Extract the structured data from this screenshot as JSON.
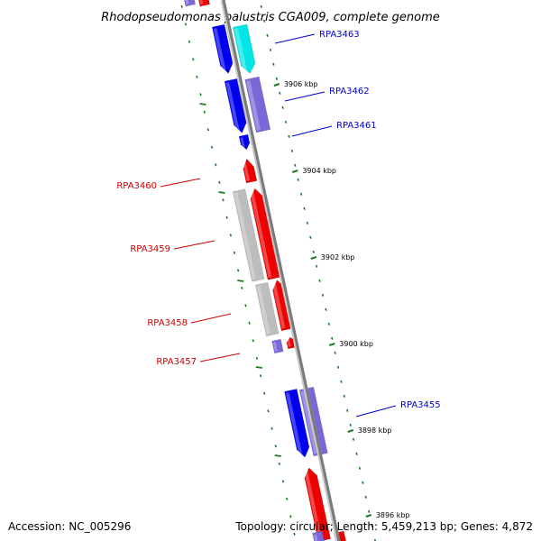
{
  "title": "Rhodopseudomonas palustris CGA009, complete genome",
  "footer": {
    "accession": "Accession: NC_005296",
    "summary": "Topology: circular; Length: 5,459,213 bp; Genes: 4,872"
  },
  "colors": {
    "backbone": "#7a7a7a",
    "tick": "#1a7a1a",
    "forward_strand": "#ee0000",
    "reverse_strand": "#0000ee",
    "reverse_light": "#7b68d8",
    "cyan": "#00e5e5",
    "pseudo": "#bdbdbd",
    "label_blue": "#0000cc",
    "label_red": "#cc0000"
  },
  "ticks": [
    {
      "label": "3906 kbp"
    },
    {
      "label": "3904 kbp"
    },
    {
      "label": "3902 kbp"
    },
    {
      "label": "3900 kbp"
    },
    {
      "label": "3898 kbp"
    },
    {
      "label": "3896 kbp"
    }
  ],
  "gene_labels": [
    {
      "name": "RPA3463",
      "strand": "reverse"
    },
    {
      "name": "RPA3462",
      "strand": "reverse"
    },
    {
      "name": "RPA3461",
      "strand": "reverse"
    },
    {
      "name": "RPA3460",
      "strand": "forward"
    },
    {
      "name": "RPA3459",
      "strand": "forward"
    },
    {
      "name": "RPA3458",
      "strand": "forward"
    },
    {
      "name": "RPA3457",
      "strand": "forward"
    },
    {
      "name": "RPA3455",
      "strand": "reverse"
    }
  ]
}
